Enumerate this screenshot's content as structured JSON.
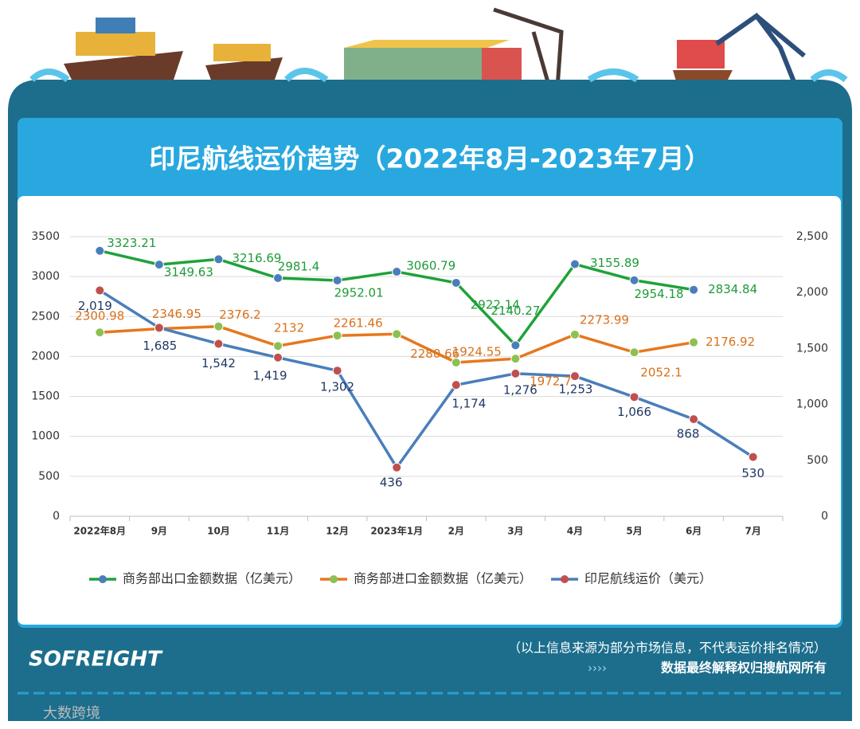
{
  "chart_data": {
    "type": "line",
    "title": "印尼航线运价趋势（2022年8月-2023年7月）",
    "categories": [
      "2022年8月",
      "9月",
      "10月",
      "11月",
      "12月",
      "2023年1月",
      "2月",
      "3月",
      "4月",
      "5月",
      "6月",
      "7月"
    ],
    "series": [
      {
        "name": "商务部出口金额数据（亿美元）",
        "color": "#1fa23a",
        "marker_color": "#4a7ebb",
        "label_color": "#1e9a38",
        "values": [
          3323.21,
          3149.63,
          3216.69,
          2981.4,
          2952.01,
          3060.79,
          2922.14,
          2140.27,
          3155.89,
          2954.18,
          2834.84,
          null
        ]
      },
      {
        "name": "商务部进口金额数据（亿美元）",
        "color": "#e6781e",
        "marker_color": "#8cc152",
        "label_color": "#d9711a",
        "values": [
          2300.98,
          2346.95,
          2376.2,
          2132,
          2261.46,
          2280.66,
          1924.55,
          1972.7,
          2273.99,
          2052.1,
          2176.92,
          null
        ]
      },
      {
        "name": "印尼航线运价（美元）",
        "color": "#4a7ebb",
        "marker_color": "#c0504d",
        "label_color": "#1f3864",
        "axis": "y2",
        "values": [
          2019,
          1685,
          1542,
          1419,
          1302,
          436,
          1174,
          1276,
          1253,
          1066,
          868,
          530
        ],
        "value_labels": [
          "2,019",
          "1,685",
          "1,542",
          "1,419",
          "1,302",
          "436",
          "1,174",
          "1,276",
          "1,253",
          "1,066",
          "868",
          "530"
        ]
      }
    ],
    "ylim": [
      0,
      3500
    ],
    "yticks": [
      0,
      500,
      1000,
      1500,
      2000,
      2500,
      3000,
      3500
    ],
    "y2lim": [
      0,
      2500
    ],
    "y2ticks": [
      0,
      500,
      {
        "value": 1000,
        "label": "1,000"
      },
      {
        "value": 1500,
        "label": "1,500"
      },
      {
        "value": 2000,
        "label": "2,000"
      },
      {
        "value": 2500,
        "label": "2,500"
      }
    ],
    "grid": true,
    "legend": "bottom"
  },
  "footer": {
    "note": "（以上信息来源为部分市场信息，不代表运价排名情况）",
    "rights": "数据最终解释权归搜航网所有"
  },
  "brand": "SOFREIGHT",
  "watermark": "大数跨境"
}
